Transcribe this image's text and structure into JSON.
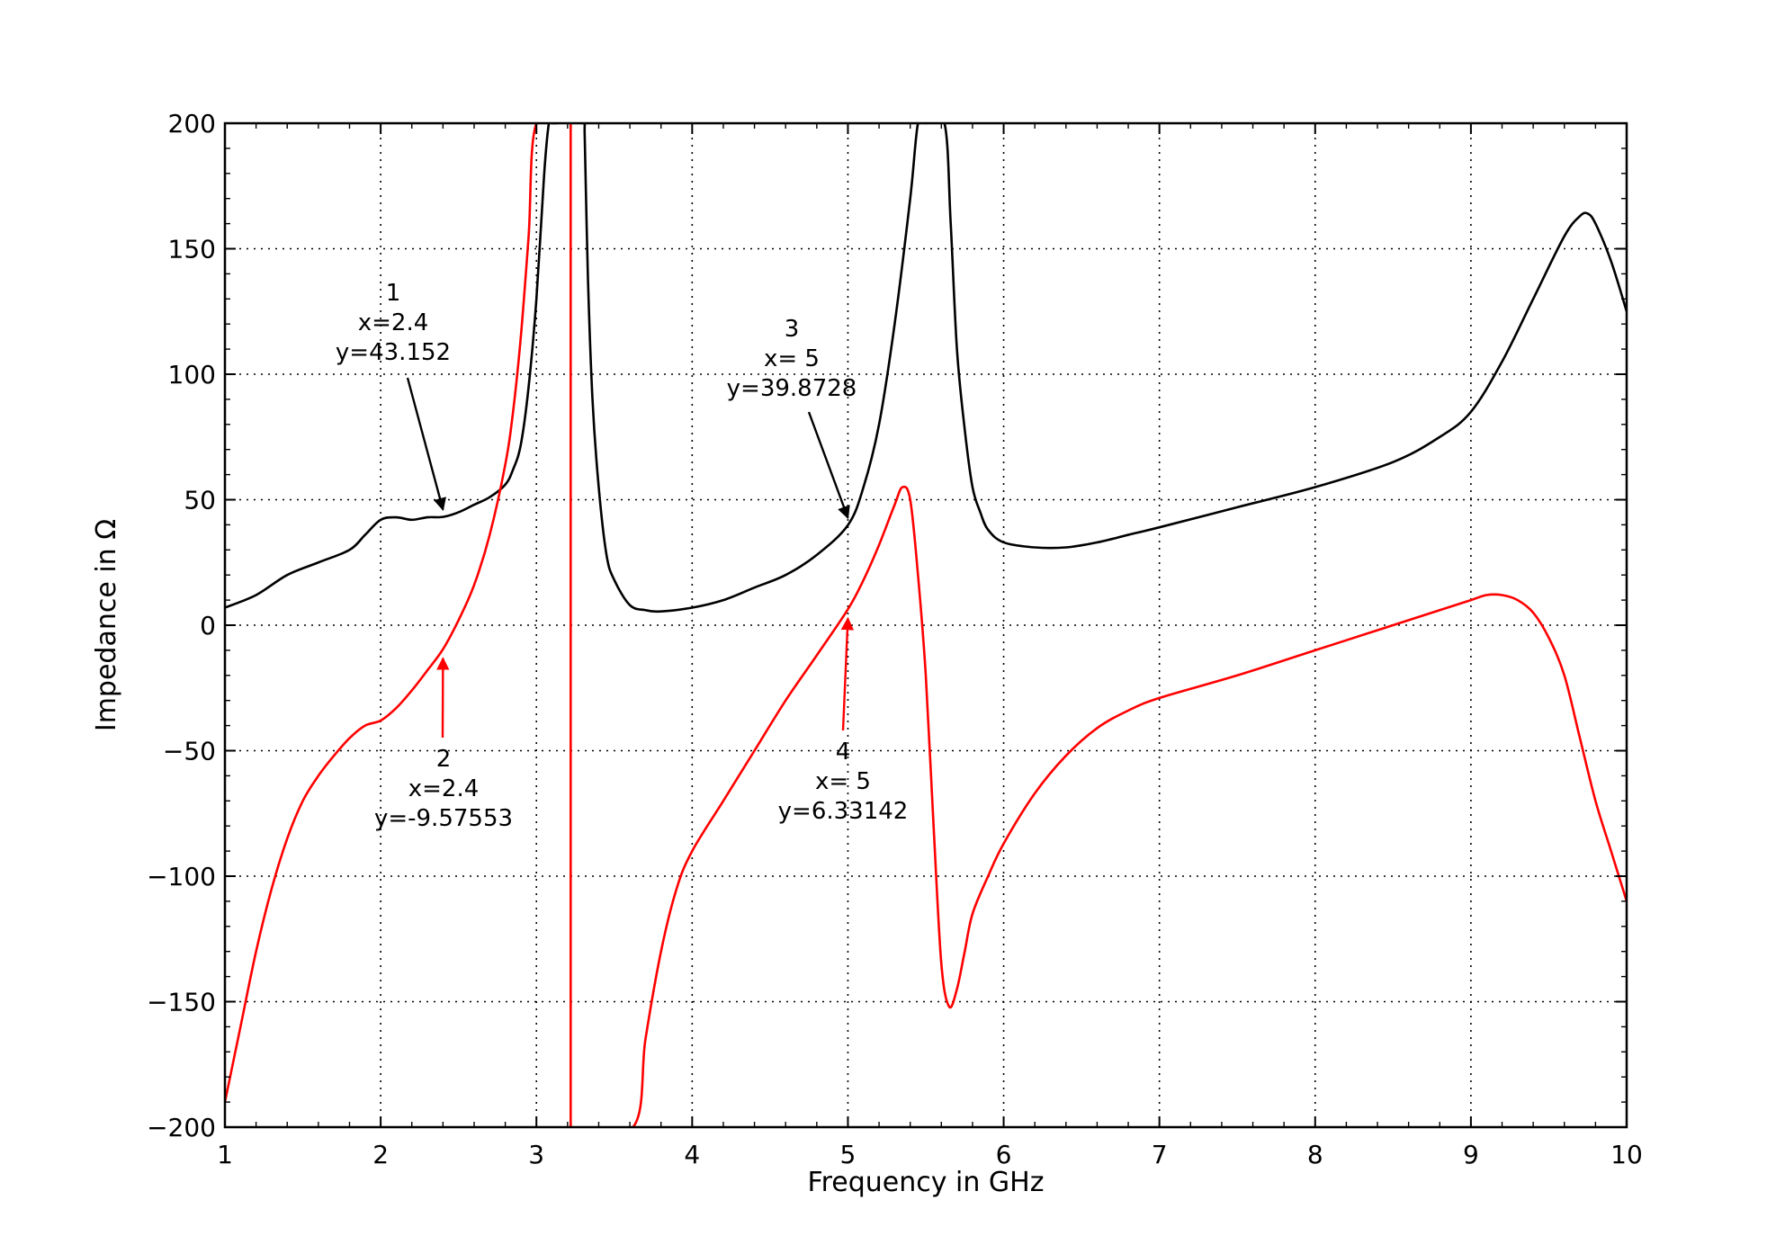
{
  "chart_data": {
    "type": "line",
    "title": "",
    "xlabel": "Frequency in GHz",
    "ylabel": "Impedance in Ω",
    "xlim": [
      1,
      10
    ],
    "ylim": [
      -200,
      200
    ],
    "xticks": [
      1,
      2,
      3,
      4,
      5,
      6,
      7,
      8,
      9,
      10
    ],
    "xtick_labels": [
      "1",
      "2",
      "3",
      "4",
      "5",
      "6",
      "7",
      "8",
      "9",
      "10"
    ],
    "yticks": [
      -200,
      -150,
      -100,
      -50,
      0,
      50,
      100,
      150,
      200
    ],
    "ytick_labels": [
      "−200",
      "−150",
      "−100",
      "−50",
      "0",
      "50",
      "100",
      "150",
      "200"
    ],
    "grid": true,
    "series": [
      {
        "color": "#000000",
        "x": [
          1.0,
          1.2,
          1.4,
          1.6,
          1.8,
          1.9,
          2.0,
          2.1,
          2.2,
          2.3,
          2.4,
          2.5,
          2.6,
          2.7,
          2.8,
          2.85,
          2.9,
          2.95,
          3.0,
          3.05,
          3.08,
          3.1,
          3.12,
          3.3,
          3.31,
          3.33,
          3.36,
          3.4,
          3.45,
          3.5,
          3.6,
          3.7,
          3.8,
          4.0,
          4.2,
          4.4,
          4.6,
          4.8,
          5.0,
          5.1,
          5.2,
          5.3,
          5.4,
          5.45,
          5.5,
          5.62,
          5.66,
          5.7,
          5.75,
          5.8,
          5.85,
          5.9,
          6.0,
          6.2,
          6.4,
          6.6,
          6.8,
          7.0,
          7.5,
          8.0,
          8.5,
          8.8,
          9.0,
          9.2,
          9.4,
          9.6,
          9.7,
          9.75,
          9.8,
          9.9,
          10.0
        ],
        "y": [
          7,
          12,
          20,
          25,
          30,
          36,
          42,
          43,
          42,
          43,
          43.152,
          45,
          48,
          51,
          56,
          62,
          72,
          95,
          130,
          180,
          200,
          200,
          200,
          200,
          195,
          140,
          90,
          55,
          28,
          18,
          8,
          6,
          5.5,
          7,
          10,
          15,
          20,
          28,
          39.8728,
          55,
          80,
          120,
          170,
          200,
          200,
          200,
          160,
          110,
          78,
          55,
          45,
          38,
          33,
          31,
          31,
          33,
          36,
          39,
          47,
          55,
          65,
          75,
          85,
          105,
          130,
          155,
          163,
          164,
          160,
          145,
          125
        ]
      },
      {
        "color": "#ff0000",
        "x": [
          1.0,
          1.1,
          1.2,
          1.3,
          1.4,
          1.5,
          1.6,
          1.7,
          1.8,
          1.9,
          2.0,
          2.1,
          2.2,
          2.3,
          2.4,
          2.5,
          2.6,
          2.7,
          2.8,
          2.85,
          2.9,
          2.95,
          3.0,
          3.22,
          3.22,
          3.62,
          3.7,
          3.8,
          3.9,
          4.0,
          4.2,
          4.4,
          4.6,
          4.8,
          5.0,
          5.1,
          5.2,
          5.3,
          5.35,
          5.4,
          5.45,
          5.5,
          5.55,
          5.6,
          5.65,
          5.7,
          5.75,
          5.8,
          5.9,
          6.0,
          6.2,
          6.4,
          6.6,
          6.8,
          7.0,
          7.5,
          8.0,
          8.5,
          8.8,
          9.0,
          9.1,
          9.2,
          9.3,
          9.4,
          9.5,
          9.6,
          9.7,
          9.8,
          9.9,
          10.0
        ],
        "y": [
          -190,
          -160,
          -130,
          -105,
          -85,
          -70,
          -60,
          -52,
          -45,
          -40,
          -38,
          -33,
          -26,
          -18,
          -9.57553,
          2,
          16,
          36,
          64,
          85,
          115,
          155,
          200,
          200,
          -200,
          -200,
          -165,
          -130,
          -105,
          -90,
          -70,
          -50,
          -30,
          -12,
          6.33142,
          18,
          32,
          48,
          55,
          50,
          20,
          -20,
          -80,
          -135,
          -152,
          -145,
          -130,
          -115,
          -100,
          -87,
          -67,
          -52,
          -41,
          -34,
          -29,
          -20,
          -10,
          0,
          6,
          10,
          12,
          12,
          10,
          5,
          -5,
          -20,
          -45,
          -70,
          -90,
          -110
        ]
      }
    ],
    "annotations": [
      {
        "lines": [
          "1",
          "x=2.4",
          "y=43.152"
        ],
        "x": 2.4,
        "y": 43.152,
        "color": "#000000"
      },
      {
        "lines": [
          "2",
          "x=2.4",
          "y=-9.57553"
        ],
        "x": 2.4,
        "y": -9.57553,
        "color": "#ff0000"
      },
      {
        "lines": [
          "3",
          "x=  5",
          "y=39.8728"
        ],
        "x": 5,
        "y": 39.8728,
        "color": "#000000"
      },
      {
        "lines": [
          "4",
          "x=  5",
          "y=6.33142"
        ],
        "x": 5,
        "y": 6.33142,
        "color": "#ff0000"
      }
    ]
  }
}
